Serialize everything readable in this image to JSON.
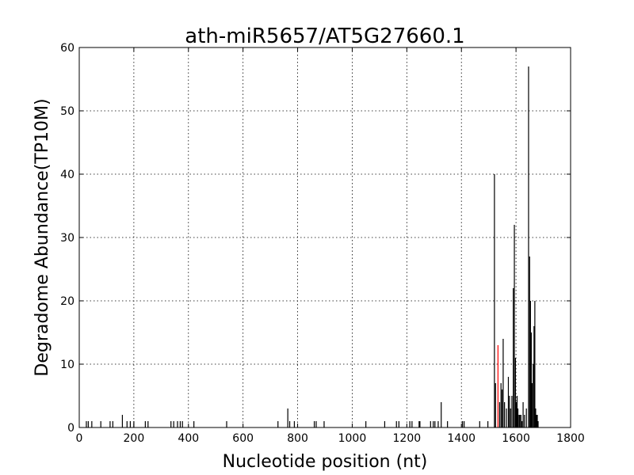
{
  "chart_data": {
    "type": "bar",
    "title": "ath-miR5657/AT5G27660.1",
    "xlabel": "Nucleotide position (nt)",
    "ylabel": "Degradome Abundance(TP10M)",
    "xlim": [
      0,
      1800
    ],
    "ylim": [
      0,
      60
    ],
    "xticks": [
      "0",
      "200",
      "400",
      "600",
      "800",
      "1000",
      "1200",
      "1400",
      "1600",
      "1800"
    ],
    "yticks": [
      "0",
      "10",
      "20",
      "30",
      "40",
      "50",
      "60"
    ],
    "grid": true,
    "series": [
      {
        "color": "#000000",
        "x": [
          26,
          33,
          46,
          79,
          113,
          123,
          158,
          175,
          187,
          200,
          242,
          252,
          336,
          346,
          360,
          370,
          378,
          420,
          540,
          728,
          764,
          771,
          788,
          861,
          868,
          897,
          1050,
          1119,
          1162,
          1171,
          1211,
          1219,
          1245,
          1248,
          1287,
          1297,
          1303,
          1315,
          1326,
          1349,
          1404,
          1410,
          1467,
          1497,
          1521,
          1525,
          1540,
          1545,
          1549,
          1553,
          1558,
          1565,
          1572,
          1576,
          1580,
          1585,
          1590,
          1594,
          1598,
          1601,
          1604,
          1607,
          1611,
          1614,
          1618,
          1622,
          1626,
          1631,
          1638,
          1646,
          1650,
          1653,
          1656,
          1659,
          1663,
          1666,
          1669,
          1672,
          1675,
          1678,
          1681
        ],
        "values": [
          1,
          1,
          1,
          1,
          1,
          1,
          2,
          1,
          1,
          1,
          1,
          1,
          1,
          1,
          1,
          1,
          1,
          1,
          1,
          1,
          3,
          1,
          1,
          1,
          1,
          1,
          1,
          1,
          1,
          1,
          1,
          1,
          1,
          1,
          1,
          1,
          1,
          1,
          4,
          1,
          1,
          1,
          1,
          1,
          40,
          7,
          4,
          7,
          6,
          14,
          4,
          3,
          8,
          5,
          3,
          5,
          22,
          32,
          11,
          4,
          5,
          3,
          2,
          2,
          2,
          1,
          4,
          2,
          3,
          57,
          27,
          20,
          15,
          7,
          10,
          16,
          20,
          3,
          2,
          2,
          1
        ]
      },
      {
        "color": "#ff0000",
        "x": [
          1534
        ],
        "values": [
          13
        ]
      }
    ]
  }
}
